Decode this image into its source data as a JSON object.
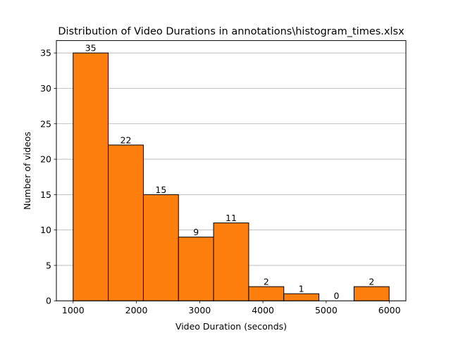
{
  "chart_data": {
    "type": "bar",
    "title": "Distribution of Video Durations in annotations\\histogram_times.xlsx",
    "xlabel": "Video Duration (seconds)",
    "ylabel": "Number of videos",
    "bins": [
      {
        "start": 1000,
        "end": 1555,
        "count": 35
      },
      {
        "start": 1555,
        "end": 2110,
        "count": 22
      },
      {
        "start": 2110,
        "end": 2665,
        "count": 15
      },
      {
        "start": 2665,
        "end": 3220,
        "count": 9
      },
      {
        "start": 3220,
        "end": 3775,
        "count": 11
      },
      {
        "start": 3775,
        "end": 4330,
        "count": 2
      },
      {
        "start": 4330,
        "end": 4885,
        "count": 1
      },
      {
        "start": 4885,
        "end": 5440,
        "count": 0
      },
      {
        "start": 5440,
        "end": 5995,
        "count": 2
      }
    ],
    "xlim": [
      735,
      6260
    ],
    "ylim": [
      0,
      36.75
    ],
    "xticks": [
      1000,
      2000,
      3000,
      4000,
      5000,
      6000
    ],
    "yticks": [
      0,
      5,
      10,
      15,
      20,
      25,
      30,
      35
    ],
    "grid": "y",
    "bar_color": "#ff7f0e",
    "edge_color": "#000000",
    "grid_color": "#b0b0b0"
  }
}
